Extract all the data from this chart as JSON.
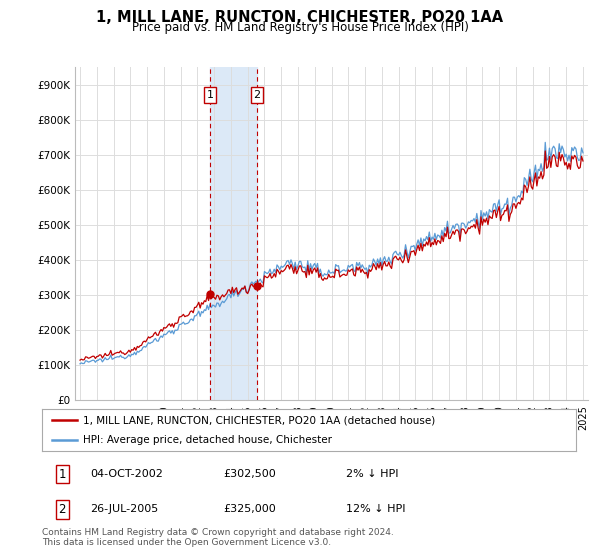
{
  "title": "1, MILL LANE, RUNCTON, CHICHESTER, PO20 1AA",
  "subtitle": "Price paid vs. HM Land Registry's House Price Index (HPI)",
  "ylim": [
    0,
    950000
  ],
  "yticks": [
    0,
    100000,
    200000,
    300000,
    400000,
    500000,
    600000,
    700000,
    800000,
    900000
  ],
  "ytick_labels": [
    "£0",
    "£100K",
    "£200K",
    "£300K",
    "£400K",
    "£500K",
    "£600K",
    "£700K",
    "£800K",
    "£900K"
  ],
  "hpi_color": "#5b9bd5",
  "price_color": "#c00000",
  "sale1_date": 2002.75,
  "sale1_price": 302500,
  "sale1_label": "1",
  "sale2_date": 2005.56,
  "sale2_price": 325000,
  "sale2_label": "2",
  "shade_color": "#dce9f7",
  "vline_color": "#c00000",
  "legend_entries": [
    "1, MILL LANE, RUNCTON, CHICHESTER, PO20 1AA (detached house)",
    "HPI: Average price, detached house, Chichester"
  ],
  "table_rows": [
    [
      "1",
      "04-OCT-2002",
      "£302,500",
      "2% ↓ HPI"
    ],
    [
      "2",
      "26-JUL-2005",
      "£325,000",
      "12% ↓ HPI"
    ]
  ],
  "footer": "Contains HM Land Registry data © Crown copyright and database right 2024.\nThis data is licensed under the Open Government Licence v3.0.",
  "background_color": "#ffffff",
  "grid_color": "#dddddd",
  "xlim_start": 1994.7,
  "xlim_end": 2025.3
}
